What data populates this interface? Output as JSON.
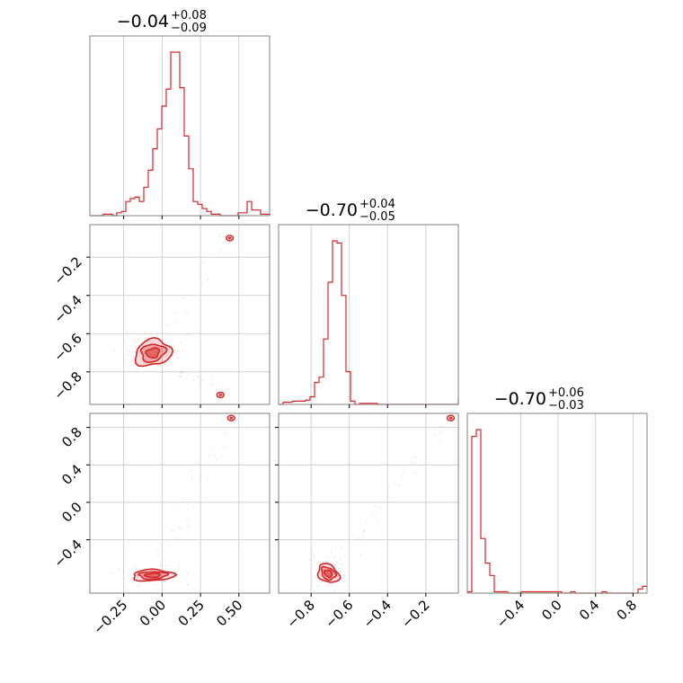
{
  "chart_data": {
    "type": "corner",
    "color": "#d62728",
    "grid": true,
    "titles": [
      {
        "median": "−0.04",
        "plus": "+0.08",
        "minus": "−0.09"
      },
      {
        "median": "−0.70",
        "plus": "+0.04",
        "minus": "−0.05"
      },
      {
        "median": "−0.70",
        "plus": "+0.06",
        "minus": "−0.03"
      }
    ],
    "ranges": [
      [
        -0.47,
        0.7
      ],
      [
        -0.97,
        -0.03
      ],
      [
        -0.97,
        0.95
      ]
    ],
    "ticks": {
      "p0": [
        {
          "v": -0.25,
          "label": "−0.25"
        },
        {
          "v": 0.0,
          "label": "0.00"
        },
        {
          "v": 0.25,
          "label": "0.25"
        },
        {
          "v": 0.5,
          "label": "0.50"
        }
      ],
      "p1": [
        {
          "v": -0.8,
          "label": "−0.8"
        },
        {
          "v": -0.6,
          "label": "−0.6"
        },
        {
          "v": -0.4,
          "label": "−0.4"
        },
        {
          "v": -0.2,
          "label": "−0.2"
        }
      ],
      "p2x": [
        {
          "v": -0.4,
          "label": "−0.4"
        },
        {
          "v": 0.0,
          "label": "0.0"
        },
        {
          "v": 0.4,
          "label": "0.4"
        },
        {
          "v": 0.8,
          "label": "0.8"
        }
      ],
      "p2y": [
        {
          "v": -0.4,
          "label": "−0.4"
        },
        {
          "v": 0.0,
          "label": "0.0"
        },
        {
          "v": 0.4,
          "label": "0.4"
        },
        {
          "v": 0.8,
          "label": "0.8"
        }
      ]
    },
    "histograms": [
      {
        "param": 0,
        "bin_edges_start": -0.47,
        "bin_width": 0.02925,
        "counts": [
          0,
          0,
          0,
          1,
          1,
          0,
          2,
          3,
          10,
          12,
          13,
          10,
          20,
          32,
          47,
          61,
          77,
          89,
          115,
          115,
          90,
          56,
          33,
          10,
          8,
          5,
          3,
          1,
          1,
          0,
          0,
          0,
          0,
          2,
          2,
          10,
          4,
          4,
          1,
          1,
          0,
          1
        ]
      },
      {
        "param": 1,
        "bin_edges_start": -0.97,
        "bin_width": 0.0235,
        "counts": [
          0,
          2,
          2,
          3,
          3,
          3,
          4,
          7,
          20,
          25,
          60,
          112,
          150,
          148,
          100,
          30,
          3,
          0,
          1,
          1,
          1,
          1,
          0,
          0,
          0,
          0,
          0,
          0,
          0,
          0,
          0,
          0,
          0,
          0,
          0,
          0,
          0,
          0,
          0,
          0,
          3,
          6,
          2
        ]
      },
      {
        "param": 2,
        "bin_edges_start": -0.97,
        "bin_width": 0.048,
        "counts": [
          1,
          115,
          120,
          40,
          22,
          13,
          1,
          1,
          1,
          0,
          0,
          0,
          1,
          1,
          1,
          1,
          1,
          1,
          1,
          1,
          1,
          0,
          0,
          1,
          0,
          0,
          0,
          0,
          0,
          0,
          1,
          0,
          0,
          0,
          0,
          0,
          0,
          0,
          3,
          5
        ]
      }
    ],
    "pairs": [
      {
        "x": 0,
        "y": 1,
        "core_center": [
          -0.06,
          -0.7
        ],
        "core_spread": [
          0.08,
          0.045
        ],
        "core_corr": 0.35,
        "secondary_modes": [
          [
            0.44,
            -0.1
          ],
          [
            0.38,
            -0.92
          ]
        ]
      },
      {
        "x": 0,
        "y": 2,
        "core_center": [
          -0.06,
          -0.78
        ],
        "core_spread": [
          0.09,
          0.04
        ],
        "core_corr": 0.1,
        "secondary_modes": [
          [
            0.45,
            0.9
          ]
        ]
      },
      {
        "x": 1,
        "y": 2,
        "core_center": [
          -0.71,
          -0.76
        ],
        "core_spread": [
          0.04,
          0.06
        ],
        "core_corr": -0.9,
        "secondary_modes": [
          [
            -0.07,
            0.9
          ]
        ]
      }
    ]
  }
}
